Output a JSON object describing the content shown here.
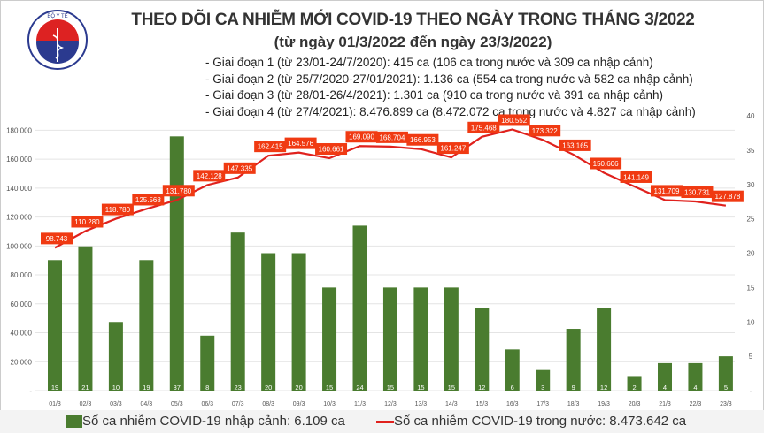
{
  "header": {
    "logo_text": "BỘ Y TẾ - MINISTRY OF HEALTH",
    "title": "THEO DÕI CA NHIỄM MỚI COVID-19 THEO NGÀY TRONG THÁNG 3/2022",
    "subtitle": "(từ ngày 01/3/2022 đến ngày 23/3/2022)",
    "notes": [
      "- Giai đoạn 1 (từ 23/01-24/7/2020): 415 ca (106 ca trong nước và 309 ca nhập cảnh)",
      "- Giai đoạn 2 (từ 25/7/2020-27/01/2021): 1.136 ca (554 ca trong nước và 582 ca nhập cảnh)",
      "- Giai đoạn 3 (từ 28/01-26/4/2021): 1.301 ca (910 ca trong nước và 391 ca nhập cảnh)",
      "- Giai đoạn 4 (từ 27/4/2021): 8.476.899 ca (8.472.072 ca trong nước và 4.827 ca nhập cảnh)"
    ]
  },
  "chart_data": {
    "type": "bar+line",
    "categories": [
      "01/3",
      "02/3",
      "03/3",
      "04/3",
      "05/3",
      "06/3",
      "07/3",
      "08/3",
      "09/3",
      "10/3",
      "11/3",
      "12/3",
      "13/3",
      "14/3",
      "15/3",
      "16/3",
      "17/3",
      "18/3",
      "19/3",
      "20/3",
      "21/3",
      "22/3",
      "23/3"
    ],
    "series": [
      {
        "name": "Số ca nhiễm COVID-19 nhập cảnh: 6.109 ca",
        "type": "bar",
        "axis": "right",
        "color": "#4a7c2f",
        "values": [
          19,
          21,
          10,
          19,
          37,
          8,
          23,
          20,
          20,
          15,
          24,
          15,
          15,
          15,
          12,
          6,
          3,
          9,
          12,
          2,
          4,
          4,
          5
        ],
        "labels": [
          "19",
          "21",
          "10",
          "19",
          "37",
          "8",
          "23",
          "20",
          "20",
          "15",
          "24",
          "15",
          "15",
          "15",
          "12",
          "6",
          "3",
          "9",
          "12",
          "2",
          "4",
          "4",
          "5"
        ]
      },
      {
        "name": "Số ca nhiễm COVID-19 trong nước: 8.473.642 ca",
        "type": "line",
        "axis": "left",
        "color": "#e0211d",
        "values": [
          98743,
          110280,
          118780,
          125568,
          131780,
          142128,
          147335,
          162415,
          164576,
          160661,
          169090,
          168704,
          166953,
          161247,
          175468,
          180552,
          173322,
          163165,
          150606,
          141149,
          131709,
          130731,
          127878
        ],
        "labels": [
          "98.743",
          "110.280",
          "118.780",
          "125.568",
          "131.780",
          "142.128",
          "147.335",
          "162.415",
          "164.576",
          "160.661",
          "169.090",
          "168.704",
          "166.953",
          "161.247",
          "175.468",
          "180.552",
          "173.322",
          "163.165",
          "150.606",
          "141.149",
          "131.709",
          "130.731",
          "127.878"
        ]
      }
    ],
    "y_left": {
      "range": [
        0,
        190000
      ],
      "ticks": [
        "-",
        "20.000",
        "40.000",
        "60.000",
        "80.000",
        "100.000",
        "120.000",
        "140.000",
        "160.000",
        "180.000"
      ]
    },
    "y_right": {
      "range": [
        0,
        40
      ],
      "ticks": [
        "-",
        "5",
        "10",
        "15",
        "20",
        "25",
        "30",
        "35",
        "40"
      ]
    },
    "grid": true,
    "legend_position": "bottom",
    "legend": [
      "Số ca nhiễm COVID-19 nhập cảnh: 6.109 ca",
      "Số ca nhiễm COVID-19 trong nước: 8.473.642 ca"
    ]
  }
}
